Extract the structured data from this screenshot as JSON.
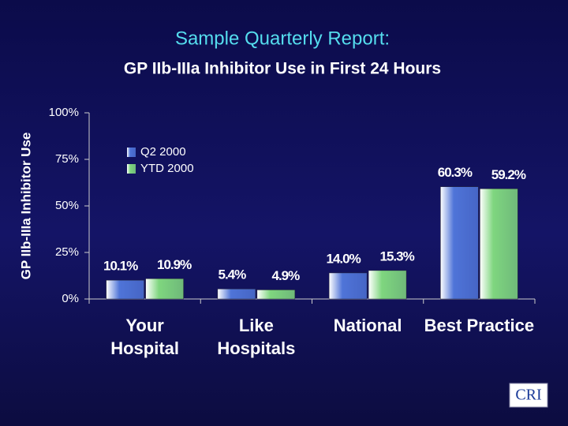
{
  "chart_data": {
    "type": "bar",
    "title": "Sample Quarterly Report:",
    "subtitle": "GP IIb-IIIa Inhibitor Use in First 24 Hours",
    "y_label": "GP IIb-IIIa Inhibitor Use",
    "categories": [
      "Your Hospital",
      "Like Hospitals",
      "National",
      "Best Practice"
    ],
    "series": [
      {
        "name": "Q2 2000",
        "color": "#4f74d8",
        "values": [
          10.1,
          5.4,
          14.0,
          60.3
        ],
        "value_labels": [
          "10.1%",
          "5.4%",
          "14.0%",
          "60.3%"
        ]
      },
      {
        "name": "YTD 2000",
        "color": "#7fd67f",
        "values": [
          10.9,
          4.9,
          15.3,
          59.2
        ],
        "value_labels": [
          "10.9%",
          "4.9%",
          "15.3%",
          "59.2%"
        ]
      }
    ],
    "ylim": [
      0,
      100
    ],
    "yticks": [
      {
        "value": 0,
        "label": "0%"
      },
      {
        "value": 25,
        "label": "25%"
      },
      {
        "value": 50,
        "label": "50%"
      },
      {
        "value": 75,
        "label": "75%"
      },
      {
        "value": 100,
        "label": "100%"
      }
    ],
    "legend": "upper left",
    "logo": "CRI"
  }
}
